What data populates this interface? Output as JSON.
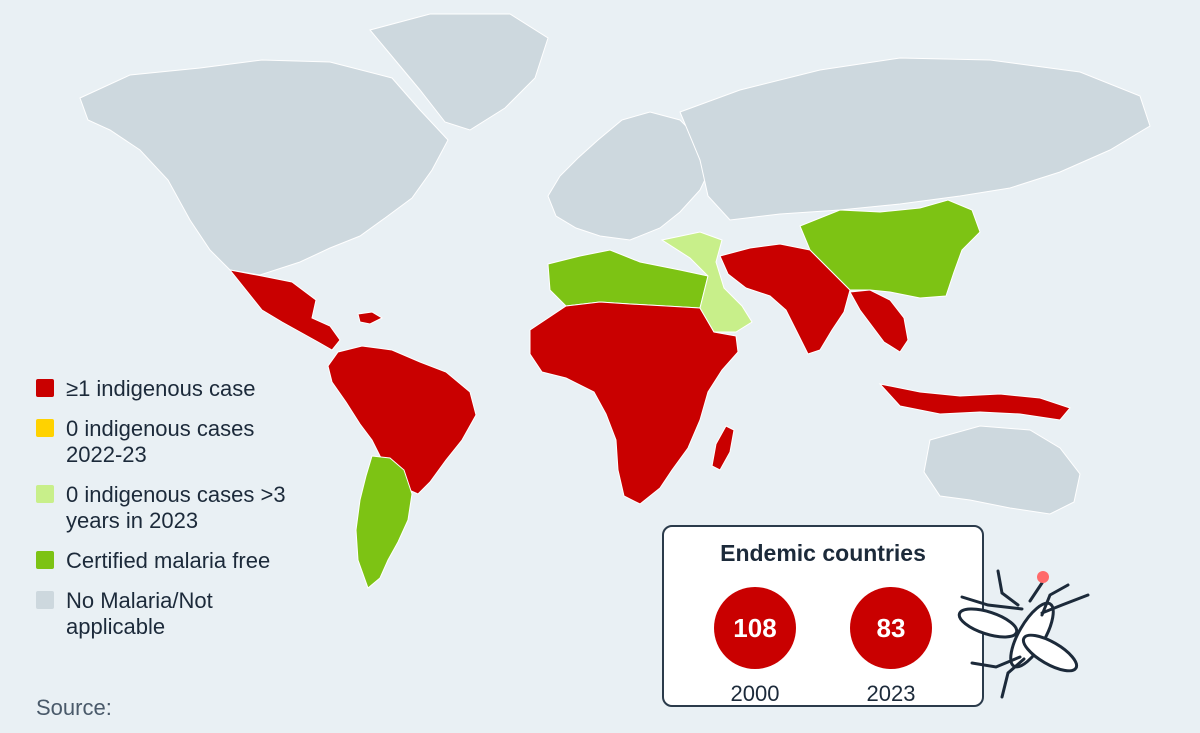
{
  "colors": {
    "background": "#e9f0f4",
    "indigenous": "#c90000",
    "zero_recent": "#ffd200",
    "zero_3yrs": "#c8ef8a",
    "certified": "#7dc314",
    "no_malaria": "#cdd8de"
  },
  "legend": [
    {
      "label": "≥1 indigenous case",
      "color": "#c90000"
    },
    {
      "label": "0 indigenous cases 2022-23",
      "color": "#ffd200"
    },
    {
      "label": "0 indigenous cases >3 years in 2023",
      "color": "#c8ef8a"
    },
    {
      "label": "Certified malaria free",
      "color": "#7dc314"
    },
    {
      "label": "No Malaria/Not applicable",
      "color": "#cdd8de"
    }
  ],
  "endemic": {
    "title": "Endemic countries",
    "stats": [
      {
        "value": "108",
        "year": "2000"
      },
      {
        "value": "83",
        "year": "2023"
      }
    ]
  },
  "source_label": "Source:",
  "regions": [
    {
      "name": "north-america",
      "status": "no_malaria"
    },
    {
      "name": "greenland",
      "status": "no_malaria"
    },
    {
      "name": "central-america",
      "status": "indigenous"
    },
    {
      "name": "south-america-north",
      "status": "indigenous"
    },
    {
      "name": "south-america-south",
      "status": "certified"
    },
    {
      "name": "europe",
      "status": "no_malaria"
    },
    {
      "name": "russia",
      "status": "no_malaria"
    },
    {
      "name": "north-africa",
      "status": "certified"
    },
    {
      "name": "sub-saharan-africa",
      "status": "indigenous"
    },
    {
      "name": "madagascar",
      "status": "indigenous"
    },
    {
      "name": "middle-east",
      "status": "zero_3yrs"
    },
    {
      "name": "south-asia",
      "status": "indigenous"
    },
    {
      "name": "china",
      "status": "certified"
    },
    {
      "name": "southeast-asia",
      "status": "indigenous"
    },
    {
      "name": "australia",
      "status": "no_malaria"
    }
  ]
}
